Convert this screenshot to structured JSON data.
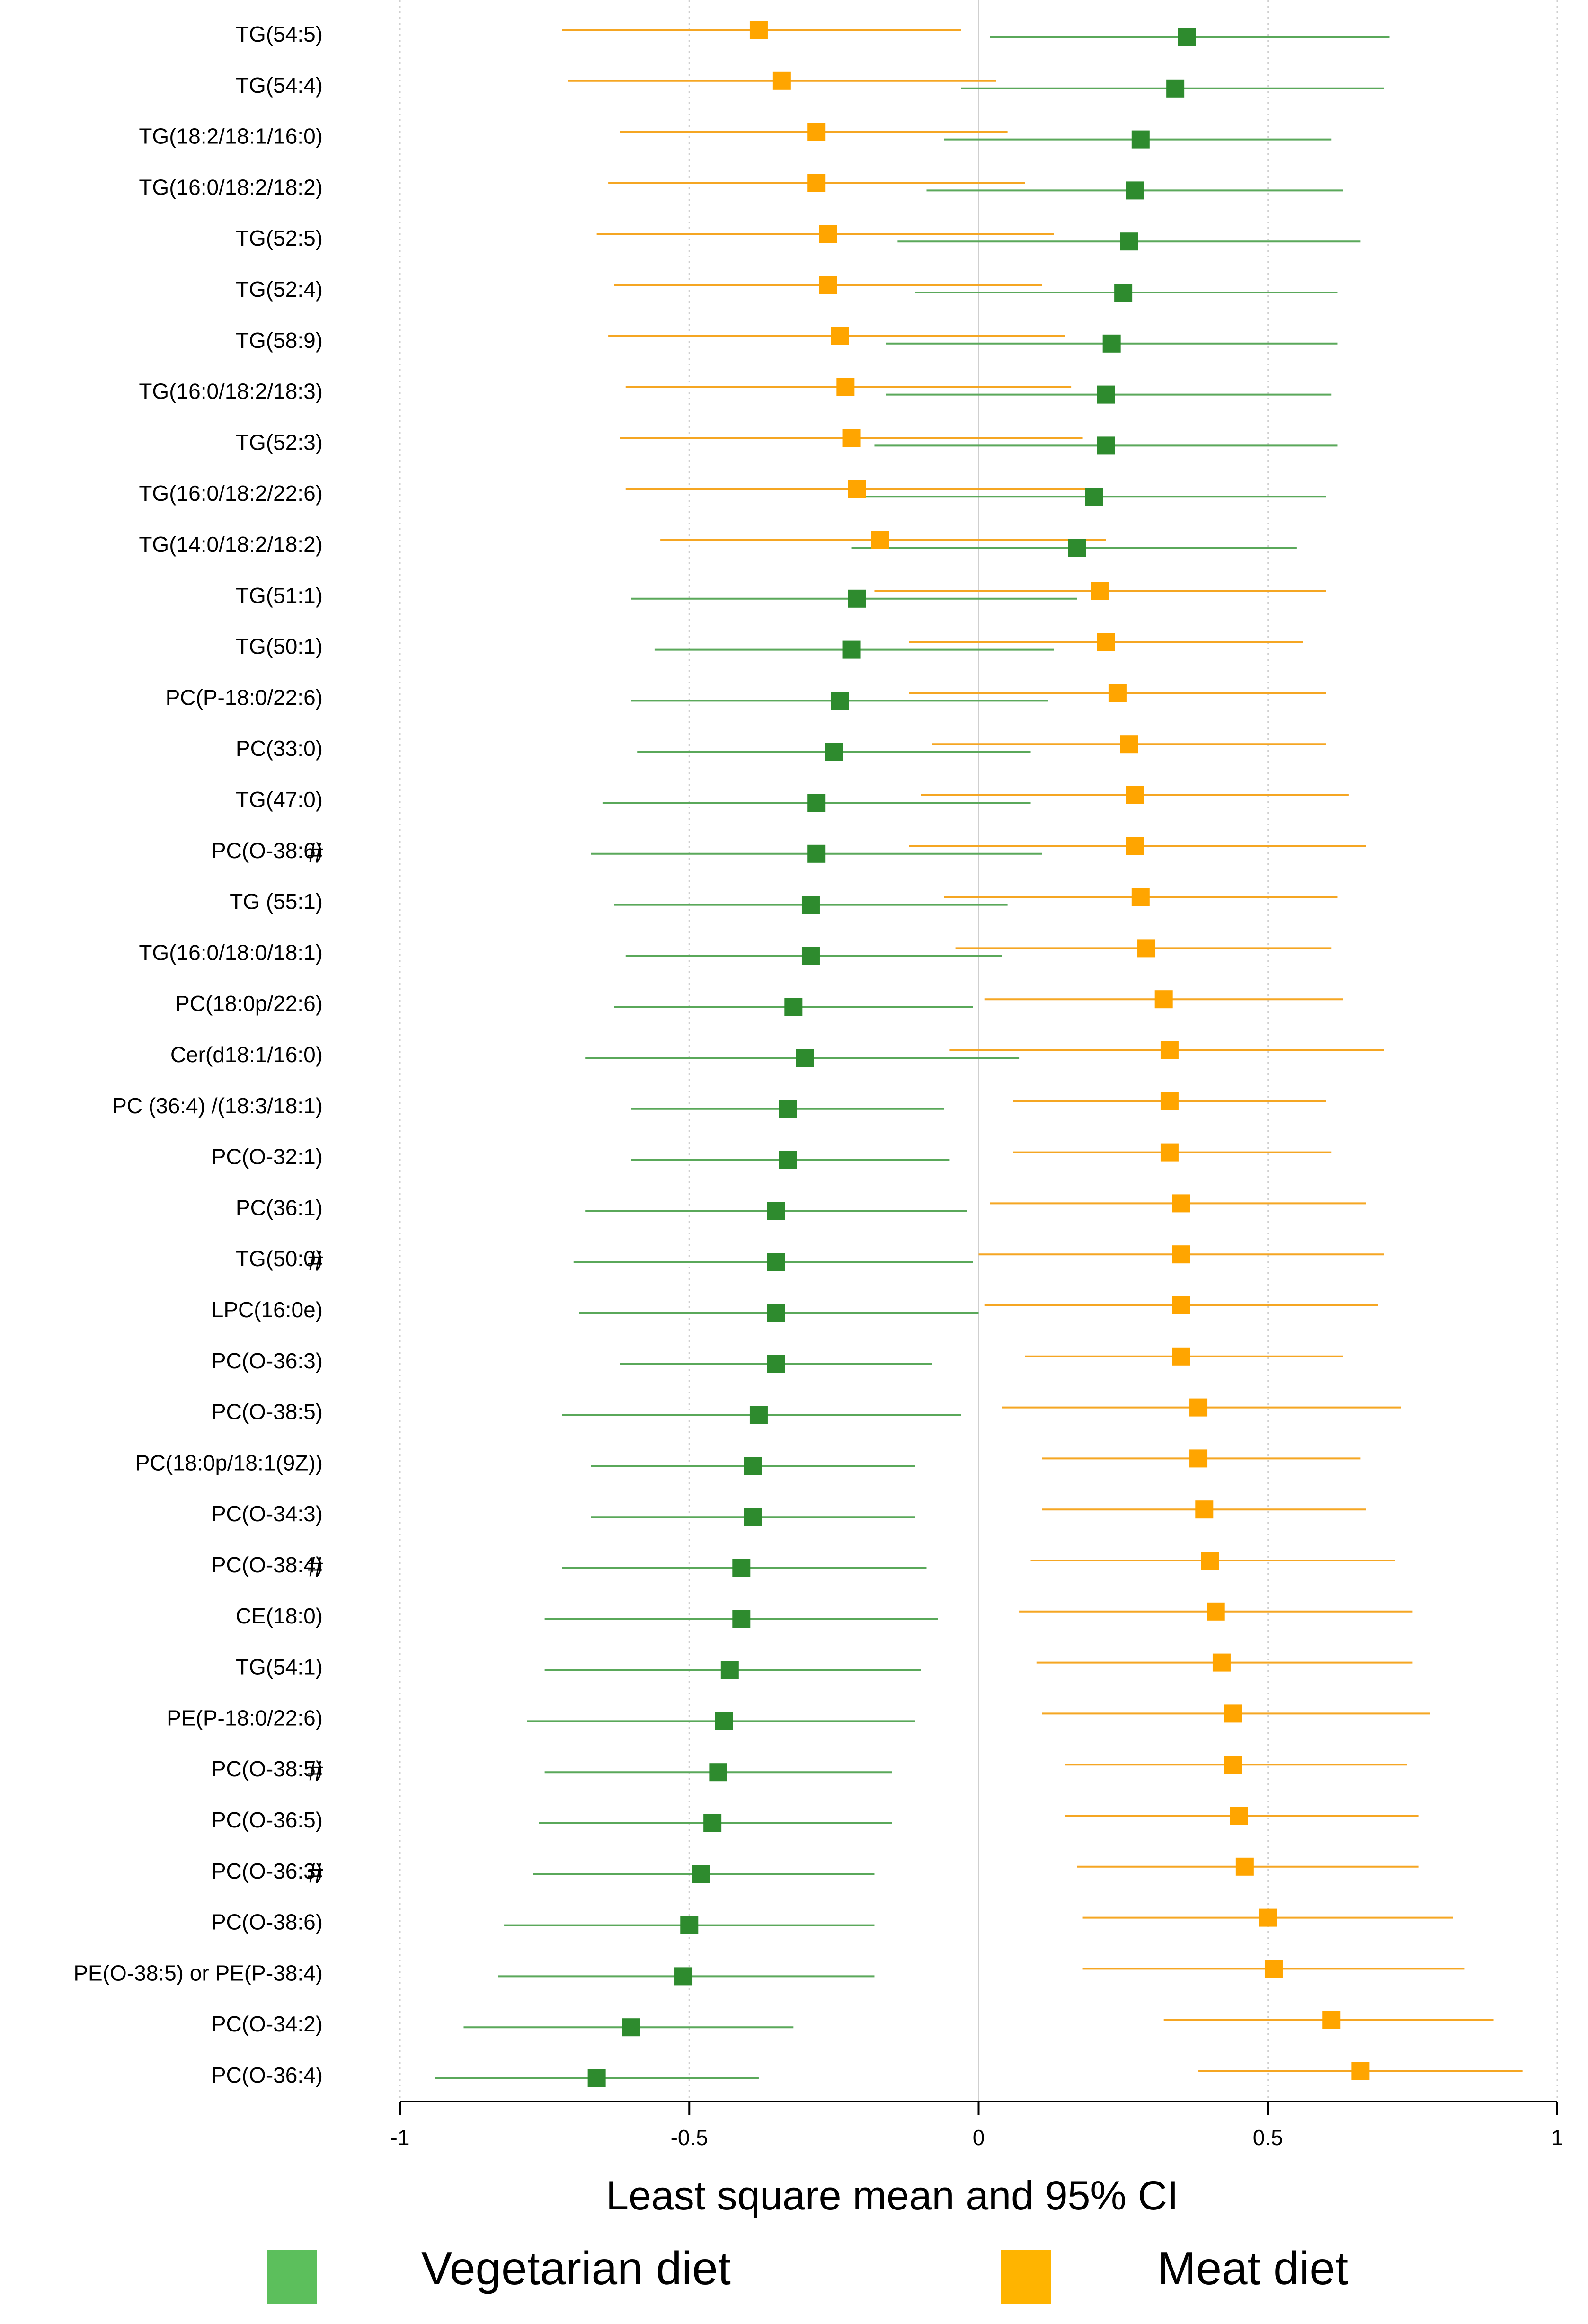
{
  "chart_data": {
    "type": "forest",
    "title": "",
    "xlabel": "Least square mean and 95% CI",
    "ylabel": "",
    "xlim": [
      -1,
      1
    ],
    "x_ticks": [
      -1,
      -0.5,
      0,
      0.5,
      1
    ],
    "x_tick_labels": [
      "-1",
      "-0.5",
      "0",
      "0.5",
      "1"
    ],
    "grid": "vertical dotted at ticks",
    "legend_position": "bottom",
    "colors": {
      "vegetarian": "#2e8b2e",
      "meat": "#f5a623",
      "legend_vegetarian": "#5cbf5c",
      "legend_meat": "#ffb400"
    },
    "series": [
      {
        "name": "Vegetarian diet",
        "key": "veg"
      },
      {
        "name": "Meat diet",
        "key": "meat"
      }
    ],
    "rows": [
      {
        "label": "TG(54:5)",
        "hash": false,
        "veg": {
          "mean": 0.36,
          "lo": 0.02,
          "hi": 0.71
        },
        "meat": {
          "mean": -0.38,
          "lo": -0.72,
          "hi": -0.03
        }
      },
      {
        "label": "TG(54:4)",
        "hash": false,
        "veg": {
          "mean": 0.34,
          "lo": -0.03,
          "hi": 0.7
        },
        "meat": {
          "mean": -0.34,
          "lo": -0.71,
          "hi": 0.03
        }
      },
      {
        "label": "TG(18:2/18:1/16:0)",
        "hash": false,
        "veg": {
          "mean": 0.28,
          "lo": -0.06,
          "hi": 0.61
        },
        "meat": {
          "mean": -0.28,
          "lo": -0.62,
          "hi": 0.05
        }
      },
      {
        "label": "TG(16:0/18:2/18:2)",
        "hash": false,
        "veg": {
          "mean": 0.27,
          "lo": -0.09,
          "hi": 0.63
        },
        "meat": {
          "mean": -0.28,
          "lo": -0.64,
          "hi": 0.08
        }
      },
      {
        "label": "TG(52:5)",
        "hash": false,
        "veg": {
          "mean": 0.26,
          "lo": -0.14,
          "hi": 0.66
        },
        "meat": {
          "mean": -0.26,
          "lo": -0.66,
          "hi": 0.13
        }
      },
      {
        "label": "TG(52:4)",
        "hash": false,
        "veg": {
          "mean": 0.25,
          "lo": -0.11,
          "hi": 0.62
        },
        "meat": {
          "mean": -0.26,
          "lo": -0.63,
          "hi": 0.11
        }
      },
      {
        "label": "TG(58:9)",
        "hash": false,
        "veg": {
          "mean": 0.23,
          "lo": -0.16,
          "hi": 0.62
        },
        "meat": {
          "mean": -0.24,
          "lo": -0.64,
          "hi": 0.15
        }
      },
      {
        "label": "TG(16:0/18:2/18:3)",
        "hash": false,
        "veg": {
          "mean": 0.22,
          "lo": -0.16,
          "hi": 0.61
        },
        "meat": {
          "mean": -0.23,
          "lo": -0.61,
          "hi": 0.16
        }
      },
      {
        "label": "TG(52:3)",
        "hash": false,
        "veg": {
          "mean": 0.22,
          "lo": -0.18,
          "hi": 0.62
        },
        "meat": {
          "mean": -0.22,
          "lo": -0.62,
          "hi": 0.18
        }
      },
      {
        "label": "TG(16:0/18:2/22:6)",
        "hash": false,
        "veg": {
          "mean": 0.2,
          "lo": -0.2,
          "hi": 0.6
        },
        "meat": {
          "mean": -0.21,
          "lo": -0.61,
          "hi": 0.19
        }
      },
      {
        "label": "TG(14:0/18:2/18:2)",
        "hash": false,
        "veg": {
          "mean": 0.17,
          "lo": -0.22,
          "hi": 0.55
        },
        "meat": {
          "mean": -0.17,
          "lo": -0.55,
          "hi": 0.22
        }
      },
      {
        "label": "TG(51:1)",
        "hash": false,
        "veg": {
          "mean": -0.21,
          "lo": -0.6,
          "hi": 0.17
        },
        "meat": {
          "mean": 0.21,
          "lo": -0.18,
          "hi": 0.6
        }
      },
      {
        "label": "TG(50:1)",
        "hash": false,
        "veg": {
          "mean": -0.22,
          "lo": -0.56,
          "hi": 0.13
        },
        "meat": {
          "mean": 0.22,
          "lo": -0.12,
          "hi": 0.56
        }
      },
      {
        "label": "PC(P-18:0/22:6)",
        "hash": false,
        "veg": {
          "mean": -0.24,
          "lo": -0.6,
          "hi": 0.12
        },
        "meat": {
          "mean": 0.24,
          "lo": -0.12,
          "hi": 0.6
        }
      },
      {
        "label": "PC(33:0)",
        "hash": false,
        "veg": {
          "mean": -0.25,
          "lo": -0.59,
          "hi": 0.09
        },
        "meat": {
          "mean": 0.26,
          "lo": -0.08,
          "hi": 0.6
        }
      },
      {
        "label": "TG(47:0)",
        "hash": false,
        "veg": {
          "mean": -0.28,
          "lo": -0.65,
          "hi": 0.09
        },
        "meat": {
          "mean": 0.27,
          "lo": -0.1,
          "hi": 0.64
        }
      },
      {
        "label": "PC(O-38:6)",
        "hash": true,
        "veg": {
          "mean": -0.28,
          "lo": -0.67,
          "hi": 0.11
        },
        "meat": {
          "mean": 0.27,
          "lo": -0.12,
          "hi": 0.67
        }
      },
      {
        "label": "TG (55:1)",
        "hash": false,
        "veg": {
          "mean": -0.29,
          "lo": -0.63,
          "hi": 0.05
        },
        "meat": {
          "mean": 0.28,
          "lo": -0.06,
          "hi": 0.62
        }
      },
      {
        "label": "TG(16:0/18:0/18:1)",
        "hash": false,
        "veg": {
          "mean": -0.29,
          "lo": -0.61,
          "hi": 0.04
        },
        "meat": {
          "mean": 0.29,
          "lo": -0.04,
          "hi": 0.61
        }
      },
      {
        "label": "PC(18:0p/22:6)",
        "hash": false,
        "veg": {
          "mean": -0.32,
          "lo": -0.63,
          "hi": -0.01
        },
        "meat": {
          "mean": 0.32,
          "lo": 0.01,
          "hi": 0.63
        }
      },
      {
        "label": "Cer(d18:1/16:0)",
        "hash": false,
        "veg": {
          "mean": -0.3,
          "lo": -0.68,
          "hi": 0.07
        },
        "meat": {
          "mean": 0.33,
          "lo": -0.05,
          "hi": 0.7
        }
      },
      {
        "label": "PC (36:4) /(18:3/18:1)",
        "hash": false,
        "veg": {
          "mean": -0.33,
          "lo": -0.6,
          "hi": -0.06
        },
        "meat": {
          "mean": 0.33,
          "lo": 0.06,
          "hi": 0.6
        }
      },
      {
        "label": "PC(O-32:1)",
        "hash": false,
        "veg": {
          "mean": -0.33,
          "lo": -0.6,
          "hi": -0.05
        },
        "meat": {
          "mean": 0.33,
          "lo": 0.06,
          "hi": 0.61
        }
      },
      {
        "label": "PC(36:1)",
        "hash": false,
        "veg": {
          "mean": -0.35,
          "lo": -0.68,
          "hi": -0.02
        },
        "meat": {
          "mean": 0.35,
          "lo": 0.02,
          "hi": 0.67
        }
      },
      {
        "label": "TG(50:0)",
        "hash": true,
        "veg": {
          "mean": -0.35,
          "lo": -0.7,
          "hi": -0.01
        },
        "meat": {
          "mean": 0.35,
          "lo": 0.0,
          "hi": 0.7
        }
      },
      {
        "label": "LPC(16:0e)",
        "hash": false,
        "veg": {
          "mean": -0.35,
          "lo": -0.69,
          "hi": 0.0
        },
        "meat": {
          "mean": 0.35,
          "lo": 0.01,
          "hi": 0.69
        }
      },
      {
        "label": "PC(O-36:3)",
        "hash": false,
        "veg": {
          "mean": -0.35,
          "lo": -0.62,
          "hi": -0.08
        },
        "meat": {
          "mean": 0.35,
          "lo": 0.08,
          "hi": 0.63
        }
      },
      {
        "label": "PC(O-38:5)",
        "hash": false,
        "veg": {
          "mean": -0.38,
          "lo": -0.72,
          "hi": -0.03
        },
        "meat": {
          "mean": 0.38,
          "lo": 0.04,
          "hi": 0.73
        }
      },
      {
        "label": "PC(18:0p/18:1(9Z))",
        "hash": false,
        "veg": {
          "mean": -0.39,
          "lo": -0.67,
          "hi": -0.11
        },
        "meat": {
          "mean": 0.38,
          "lo": 0.11,
          "hi": 0.66
        }
      },
      {
        "label": "PC(O-34:3)",
        "hash": false,
        "veg": {
          "mean": -0.39,
          "lo": -0.67,
          "hi": -0.11
        },
        "meat": {
          "mean": 0.39,
          "lo": 0.11,
          "hi": 0.67
        }
      },
      {
        "label": "PC(O-38:4)",
        "hash": true,
        "veg": {
          "mean": -0.41,
          "lo": -0.72,
          "hi": -0.09
        },
        "meat": {
          "mean": 0.4,
          "lo": 0.09,
          "hi": 0.72
        }
      },
      {
        "label": "CE(18:0)",
        "hash": false,
        "veg": {
          "mean": -0.41,
          "lo": -0.75,
          "hi": -0.07
        },
        "meat": {
          "mean": 0.41,
          "lo": 0.07,
          "hi": 0.75
        }
      },
      {
        "label": "TG(54:1)",
        "hash": false,
        "veg": {
          "mean": -0.43,
          "lo": -0.75,
          "hi": -0.1
        },
        "meat": {
          "mean": 0.42,
          "lo": 0.1,
          "hi": 0.75
        }
      },
      {
        "label": "PE(P-18:0/22:6)",
        "hash": false,
        "veg": {
          "mean": -0.44,
          "lo": -0.78,
          "hi": -0.11
        },
        "meat": {
          "mean": 0.44,
          "lo": 0.11,
          "hi": 0.78
        }
      },
      {
        "label": "PC(O-38:5)",
        "hash": true,
        "veg": {
          "mean": -0.45,
          "lo": -0.75,
          "hi": -0.15
        },
        "meat": {
          "mean": 0.44,
          "lo": 0.15,
          "hi": 0.74
        }
      },
      {
        "label": "PC(O-36:5)",
        "hash": false,
        "veg": {
          "mean": -0.46,
          "lo": -0.76,
          "hi": -0.15
        },
        "meat": {
          "mean": 0.45,
          "lo": 0.15,
          "hi": 0.76
        }
      },
      {
        "label": "PC(O-36:3)",
        "hash": true,
        "veg": {
          "mean": -0.48,
          "lo": -0.77,
          "hi": -0.18
        },
        "meat": {
          "mean": 0.46,
          "lo": 0.17,
          "hi": 0.76
        }
      },
      {
        "label": "PC(O-38:6)",
        "hash": false,
        "veg": {
          "mean": -0.5,
          "lo": -0.82,
          "hi": -0.18
        },
        "meat": {
          "mean": 0.5,
          "lo": 0.18,
          "hi": 0.82
        }
      },
      {
        "label": "PE(O-38:5) or PE(P-38:4)",
        "hash": false,
        "veg": {
          "mean": -0.51,
          "lo": -0.83,
          "hi": -0.18
        },
        "meat": {
          "mean": 0.51,
          "lo": 0.18,
          "hi": 0.84
        }
      },
      {
        "label": "PC(O-34:2)",
        "hash": false,
        "veg": {
          "mean": -0.6,
          "lo": -0.89,
          "hi": -0.32
        },
        "meat": {
          "mean": 0.61,
          "lo": 0.32,
          "hi": 0.89
        }
      },
      {
        "label": "PC(O-36:4)",
        "hash": false,
        "veg": {
          "mean": -0.66,
          "lo": -0.94,
          "hi": -0.38
        },
        "meat": {
          "mean": 0.66,
          "lo": 0.38,
          "hi": 0.94
        }
      }
    ],
    "hash_marker": "#",
    "legend": [
      {
        "name": "Vegetarian diet",
        "key": "veg"
      },
      {
        "name": "Meat diet",
        "key": "meat"
      }
    ]
  }
}
